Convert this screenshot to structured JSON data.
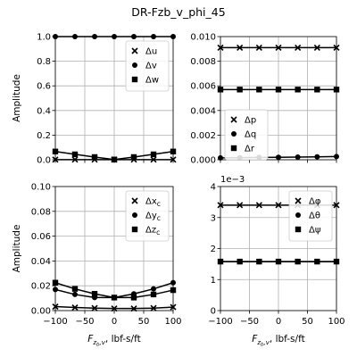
{
  "figure": {
    "title": "DR-Fzb_v_phi_45"
  },
  "chart_data": [
    {
      "type": "line",
      "ylabel": "Amplitude",
      "xlabel": "",
      "xlim": [
        -100,
        100
      ],
      "ylim": [
        0,
        1.0
      ],
      "xticks": [],
      "yticks": [
        "0.0",
        "0.2",
        "0.4",
        "0.6",
        "0.8",
        "1.0"
      ],
      "ytick_values": [
        0,
        0.2,
        0.4,
        0.6,
        0.8,
        1.0
      ],
      "grid": true,
      "legend_loc": "upper-right",
      "x": [
        -100,
        -66.7,
        -33.3,
        0,
        33.3,
        66.7,
        100
      ],
      "series": [
        {
          "name": "Δu",
          "marker": "x",
          "values": [
            0.001,
            0.001,
            0.001,
            0.001,
            0.001,
            0.001,
            0.001
          ]
        },
        {
          "name": "Δv",
          "marker": "o",
          "values": [
            1.0,
            1.0,
            1.0,
            1.0,
            1.0,
            1.0,
            1.0
          ]
        },
        {
          "name": "Δw",
          "marker": "s",
          "values": [
            0.067,
            0.044,
            0.022,
            0.002,
            0.022,
            0.044,
            0.067
          ]
        }
      ]
    },
    {
      "type": "line",
      "ylabel": "",
      "xlabel": "",
      "xlim": [
        -100,
        100
      ],
      "ylim": [
        0,
        0.01
      ],
      "xticks": [],
      "yticks": [
        "0.000",
        "0.002",
        "0.004",
        "0.006",
        "0.008",
        "0.010"
      ],
      "ytick_values": [
        0,
        0.002,
        0.004,
        0.006,
        0.008,
        0.01
      ],
      "grid": true,
      "legend_loc": "center-left",
      "x": [
        -100,
        -66.7,
        -33.3,
        0,
        33.3,
        66.7,
        100
      ],
      "series": [
        {
          "name": "Δp",
          "marker": "x",
          "values": [
            0.0091,
            0.0091,
            0.0091,
            0.0091,
            0.0091,
            0.0091,
            0.0091
          ]
        },
        {
          "name": "Δq",
          "marker": "o",
          "values": [
            0.00015,
            0.00017,
            0.00019,
            0.0002,
            0.00022,
            0.00024,
            0.00026
          ]
        },
        {
          "name": "Δr",
          "marker": "s",
          "values": [
            0.0057,
            0.0057,
            0.0057,
            0.0057,
            0.0057,
            0.0057,
            0.0057
          ]
        }
      ]
    },
    {
      "type": "line",
      "ylabel": "Amplitude",
      "xlabel": "F_{z_b},v, lbf-s/ft",
      "xlim": [
        -100,
        100
      ],
      "ylim": [
        0,
        0.1
      ],
      "xticks": [
        "−100",
        "−50",
        "0",
        "50",
        "100"
      ],
      "xtick_values": [
        -100,
        -50,
        0,
        50,
        100
      ],
      "yticks": [
        "0.00",
        "0.02",
        "0.04",
        "0.06",
        "0.08",
        "0.10"
      ],
      "ytick_values": [
        0,
        0.02,
        0.04,
        0.06,
        0.08,
        0.1
      ],
      "grid": true,
      "legend_loc": "upper-right",
      "x": [
        -100,
        -66.7,
        -33.3,
        0,
        33.3,
        66.7,
        100
      ],
      "series": [
        {
          "name": "Δx_c",
          "marker": "x",
          "values": [
            0.0032,
            0.0025,
            0.002,
            0.0017,
            0.0017,
            0.002,
            0.0028
          ]
        },
        {
          "name": "Δy_c",
          "marker": "o",
          "values": [
            0.017,
            0.013,
            0.0105,
            0.0105,
            0.0135,
            0.0175,
            0.0225
          ]
        },
        {
          "name": "Δz_c",
          "marker": "s",
          "values": [
            0.0225,
            0.0175,
            0.0135,
            0.0105,
            0.0105,
            0.013,
            0.0165
          ]
        }
      ]
    },
    {
      "type": "line",
      "ylabel": "",
      "xlabel": "F_{z_b},v, lbf-s/ft",
      "xlim": [
        -100,
        100
      ],
      "ylim": [
        0,
        4
      ],
      "offset_text": "1e−3",
      "xticks": [
        "−100",
        "−50",
        "0",
        "50",
        "100"
      ],
      "xtick_values": [
        -100,
        -50,
        0,
        50,
        100
      ],
      "yticks": [
        "0",
        "1",
        "2",
        "3",
        "4"
      ],
      "ytick_values": [
        0,
        1,
        2,
        3,
        4
      ],
      "grid": true,
      "legend_loc": "upper-right",
      "x": [
        -100,
        -66.7,
        -33.3,
        0,
        33.3,
        66.7,
        100
      ],
      "series": [
        {
          "name": "Δφ",
          "marker": "x",
          "values": [
            3.4,
            3.4,
            3.4,
            3.4,
            3.4,
            3.4,
            3.4
          ]
        },
        {
          "name": "Δθ",
          "marker": "o",
          "values": [
            1.58,
            1.58,
            1.58,
            1.58,
            1.58,
            1.58,
            1.58
          ]
        },
        {
          "name": "Δψ",
          "marker": "s",
          "values": [
            1.58,
            1.58,
            1.58,
            1.58,
            1.58,
            1.58,
            1.58
          ]
        }
      ]
    }
  ]
}
